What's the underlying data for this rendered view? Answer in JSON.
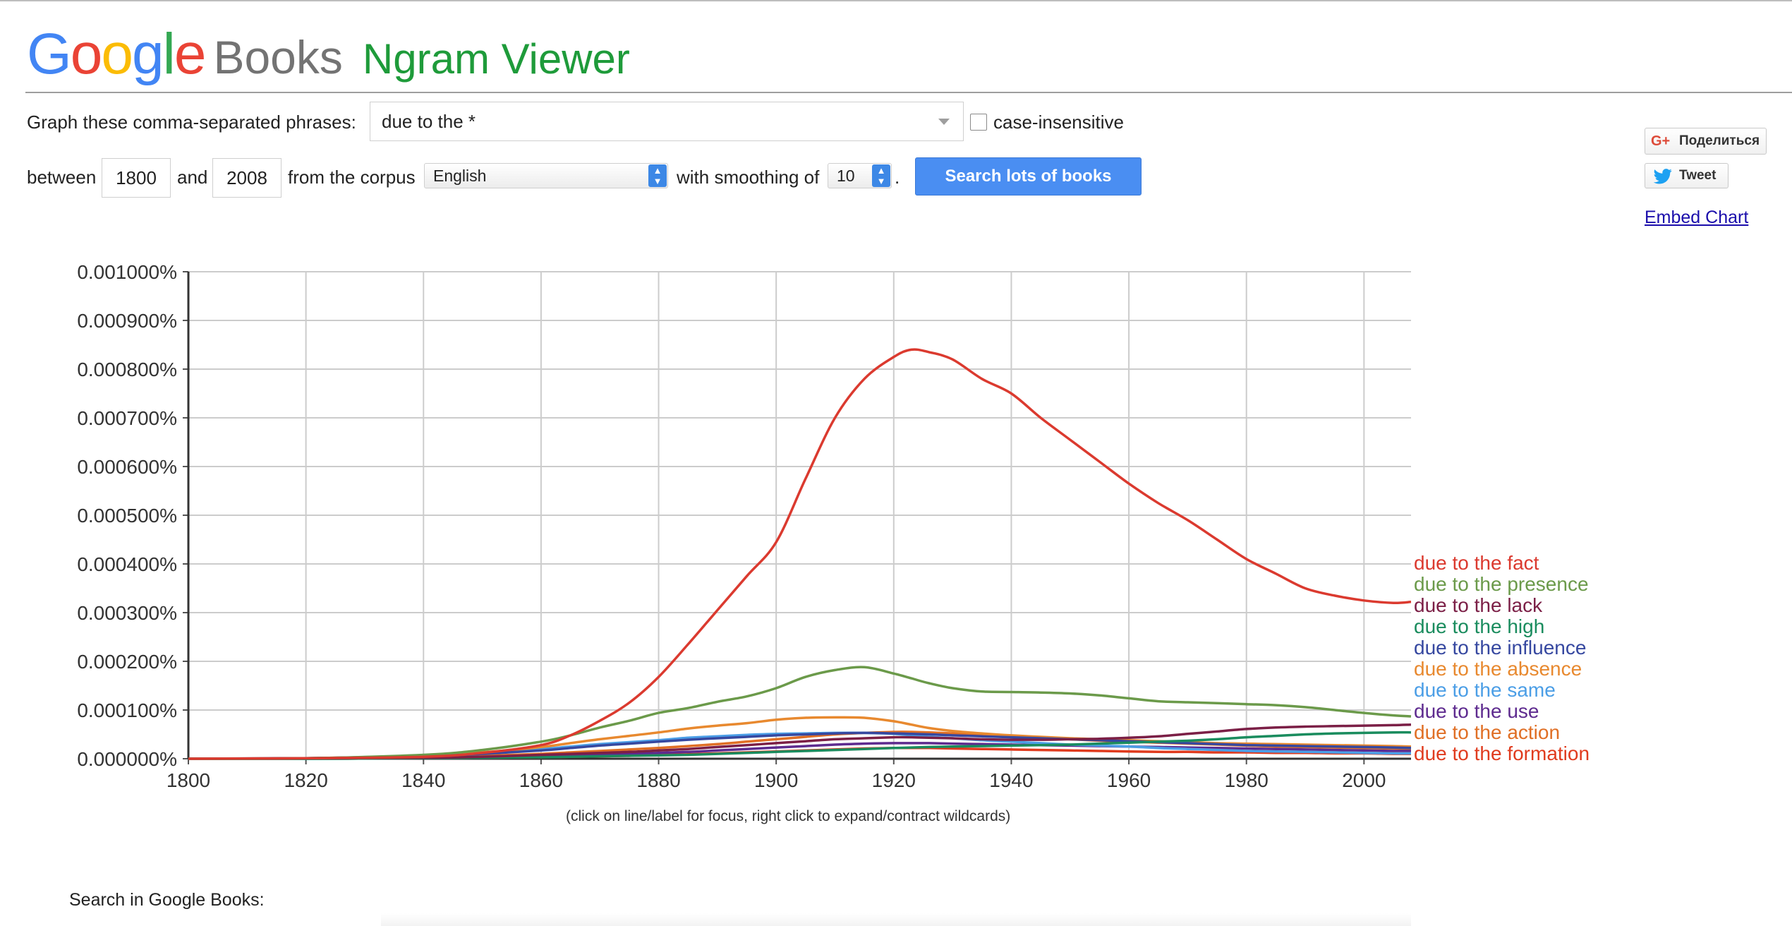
{
  "brand": {
    "google_letters": [
      {
        "ch": "G",
        "color": "#4285F4"
      },
      {
        "ch": "o",
        "color": "#EA4335"
      },
      {
        "ch": "o",
        "color": "#FBBC05"
      },
      {
        "ch": "g",
        "color": "#4285F4"
      },
      {
        "ch": "l",
        "color": "#34A853"
      },
      {
        "ch": "e",
        "color": "#EA4335"
      }
    ],
    "books": "Books",
    "product": "Ngram Viewer"
  },
  "form": {
    "phrases_label": "Graph these comma-separated phrases:",
    "phrases_value": "due to the *",
    "case_insensitive_label": "case-insensitive",
    "between_label": "between",
    "start_year": "1800",
    "and_label": "and",
    "end_year": "2008",
    "corpus_label": "from the corpus",
    "corpus_value": "English",
    "smoothing_label": "with smoothing of",
    "smoothing_value": "10",
    "period": ".",
    "search_button": "Search lots of books"
  },
  "social": {
    "share_label": "Поделиться",
    "share_icon": "G+",
    "tweet_label": "Tweet",
    "embed_label": "Embed Chart"
  },
  "hint": "(click on line/label for focus, right click to expand/contract wildcards)",
  "search_in": "Search in Google Books:",
  "chart_data": {
    "type": "line",
    "xlim": [
      1800,
      2008
    ],
    "ylim": [
      0,
      0.001
    ],
    "x_ticks": [
      1800,
      1820,
      1840,
      1860,
      1880,
      1900,
      1920,
      1940,
      1960,
      1980,
      2000
    ],
    "y_ticks": [
      "0.000000%",
      "0.000100%",
      "0.000200%",
      "0.000300%",
      "0.000400%",
      "0.000500%",
      "0.000600%",
      "0.000700%",
      "0.000800%",
      "0.000900%",
      "0.001000%"
    ],
    "grid": true,
    "legend_placement": "right-end",
    "x": [
      1800,
      1820,
      1840,
      1850,
      1860,
      1865,
      1870,
      1875,
      1880,
      1885,
      1890,
      1895,
      1900,
      1905,
      1910,
      1915,
      1920,
      1923,
      1926,
      1930,
      1935,
      1940,
      1945,
      1950,
      1955,
      1960,
      1965,
      1970,
      1975,
      1980,
      1985,
      1990,
      1995,
      2000,
      2005,
      2008
    ],
    "series": [
      {
        "name": "due to the fact",
        "color": "#db3a2f",
        "values": [
          0,
          1e-06,
          4e-06,
          1.2e-05,
          2.8e-05,
          4.8e-05,
          7.8e-05,
          0.000115,
          0.000168,
          0.000235,
          0.000305,
          0.000375,
          0.000445,
          0.000575,
          0.0007,
          0.00078,
          0.000825,
          0.00084,
          0.000835,
          0.00082,
          0.00078,
          0.00075,
          0.0007,
          0.000655,
          0.00061,
          0.000565,
          0.000525,
          0.00049,
          0.00045,
          0.00041,
          0.00038,
          0.00035,
          0.000335,
          0.000325,
          0.00032,
          0.000322
        ]
      },
      {
        "name": "due to the presence",
        "color": "#6b9a4a",
        "values": [
          0,
          1e-06,
          8e-06,
          1.8e-05,
          3.5e-05,
          4.8e-05,
          6.4e-05,
          7.8e-05,
          9.4e-05,
          0.000104,
          0.000117,
          0.000128,
          0.000145,
          0.000168,
          0.000182,
          0.000188,
          0.000175,
          0.000165,
          0.000155,
          0.000145,
          0.000138,
          0.000137,
          0.000136,
          0.000134,
          0.00013,
          0.000124,
          0.000118,
          0.000116,
          0.000114,
          0.000112,
          0.00011,
          0.000106,
          0.0001,
          9.4e-05,
          8.9e-05,
          8.7e-05
        ]
      },
      {
        "name": "due to the lack",
        "color": "#7b1f46",
        "values": [
          0,
          1e-06,
          2e-06,
          4e-06,
          8e-06,
          1e-05,
          1.2e-05,
          1.4e-05,
          1.7e-05,
          2e-05,
          2.4e-05,
          2.8e-05,
          3.2e-05,
          3.6e-05,
          4e-05,
          4.2e-05,
          4.4e-05,
          4.4e-05,
          4.3e-05,
          4.2e-05,
          4e-05,
          3.9e-05,
          3.9e-05,
          4e-05,
          4.1e-05,
          4.3e-05,
          4.6e-05,
          5.1e-05,
          5.6e-05,
          6.1e-05,
          6.4e-05,
          6.6e-05,
          6.7e-05,
          6.8e-05,
          6.9e-05,
          7e-05
        ]
      },
      {
        "name": "due to the high",
        "color": "#1a8c5e",
        "values": [
          0,
          0,
          1e-06,
          2e-06,
          3e-06,
          4e-06,
          5e-06,
          6e-06,
          7e-06,
          8e-06,
          1e-05,
          1.2e-05,
          1.4e-05,
          1.6e-05,
          1.8e-05,
          2e-05,
          2.2e-05,
          2.3e-05,
          2.4e-05,
          2.5e-05,
          2.6e-05,
          2.7e-05,
          2.8e-05,
          2.9e-05,
          3.1e-05,
          3.3e-05,
          3.5e-05,
          3.7e-05,
          4e-05,
          4.4e-05,
          4.7e-05,
          5e-05,
          5.2e-05,
          5.3e-05,
          5.4e-05,
          5.4e-05
        ]
      },
      {
        "name": "due to the influence",
        "color": "#3648a0",
        "values": [
          0,
          1e-06,
          5e-06,
          1e-05,
          1.7e-05,
          2.2e-05,
          2.7e-05,
          3.1e-05,
          3.5e-05,
          3.9e-05,
          4.2e-05,
          4.5e-05,
          4.8e-05,
          5e-05,
          5.2e-05,
          5.3e-05,
          5.2e-05,
          5.1e-05,
          5e-05,
          4.8e-05,
          4.6e-05,
          4.4e-05,
          4.2e-05,
          4e-05,
          3.8e-05,
          3.6e-05,
          3.4e-05,
          3.2e-05,
          3e-05,
          2.8e-05,
          2.7e-05,
          2.6e-05,
          2.5e-05,
          2.4e-05,
          2.3e-05,
          2.2e-05
        ]
      },
      {
        "name": "due to the absence",
        "color": "#e8892f",
        "values": [
          0,
          1e-06,
          6e-06,
          1.3e-05,
          2.4e-05,
          3.2e-05,
          4e-05,
          4.7e-05,
          5.4e-05,
          6.2e-05,
          6.8e-05,
          7.3e-05,
          8e-05,
          8.4e-05,
          8.5e-05,
          8.4e-05,
          7.7e-05,
          7e-05,
          6.3e-05,
          5.7e-05,
          5.2e-05,
          4.8e-05,
          4.5e-05,
          4.2e-05,
          4e-05,
          3.8e-05,
          3.6e-05,
          3.4e-05,
          3.2e-05,
          3.1e-05,
          3e-05,
          2.9e-05,
          2.8e-05,
          2.7e-05,
          2.6e-05,
          2.5e-05
        ]
      },
      {
        "name": "due to the same",
        "color": "#4b9ee6",
        "values": [
          0,
          1e-06,
          7e-06,
          1.3e-05,
          2e-05,
          2.5e-05,
          3e-05,
          3.4e-05,
          3.8e-05,
          4.3e-05,
          4.6e-05,
          4.9e-05,
          5.1e-05,
          5.2e-05,
          5.3e-05,
          5.3e-05,
          5.1e-05,
          4.8e-05,
          4.5e-05,
          4.2e-05,
          3.8e-05,
          3.5e-05,
          3.2e-05,
          2.9e-05,
          2.7e-05,
          2.5e-05,
          2.2e-05,
          2e-05,
          1.8e-05,
          1.6e-05,
          1.5e-05,
          1.4e-05,
          1.3e-05,
          1.2e-05,
          1.1e-05,
          1.1e-05
        ]
      },
      {
        "name": "due to the use",
        "color": "#5e2b8f",
        "values": [
          0,
          0,
          1e-06,
          2e-06,
          4e-06,
          6e-06,
          8e-06,
          1e-05,
          1.2e-05,
          1.4e-05,
          1.7e-05,
          2e-05,
          2.3e-05,
          2.6e-05,
          2.9e-05,
          3.1e-05,
          3.2e-05,
          3.2e-05,
          3.2e-05,
          3.1e-05,
          3e-05,
          2.9e-05,
          2.8e-05,
          2.7e-05,
          2.6e-05,
          2.5e-05,
          2.4e-05,
          2.3e-05,
          2.2e-05,
          2.1e-05,
          2e-05,
          1.9e-05,
          1.8e-05,
          1.7e-05,
          1.6e-05,
          1.6e-05
        ]
      },
      {
        "name": "due to the action",
        "color": "#e06f25",
        "values": [
          0,
          1e-06,
          3e-06,
          6e-06,
          1e-05,
          1.3e-05,
          1.6e-05,
          1.9e-05,
          2.2e-05,
          2.6e-05,
          3e-05,
          3.5e-05,
          4e-05,
          4.5e-05,
          5e-05,
          5.3e-05,
          5.5e-05,
          5.5e-05,
          5.4e-05,
          5.2e-05,
          4.9e-05,
          4.6e-05,
          4.3e-05,
          4e-05,
          3.7e-05,
          3.5e-05,
          3.3e-05,
          3.1e-05,
          2.9e-05,
          2.7e-05,
          2.5e-05,
          2.4e-05,
          2.3e-05,
          2.2e-05,
          2.1e-05,
          2e-05
        ]
      },
      {
        "name": "due to the formation",
        "color": "#e03b1e",
        "values": [
          0,
          0,
          1e-06,
          2e-06,
          3e-06,
          4e-06,
          5e-06,
          6e-06,
          8e-06,
          9e-06,
          1.1e-05,
          1.3e-05,
          1.5e-05,
          1.7e-05,
          1.9e-05,
          2.1e-05,
          2.2e-05,
          2.2e-05,
          2.2e-05,
          2.1e-05,
          2e-05,
          1.9e-05,
          1.8e-05,
          1.7e-05,
          1.6e-05,
          1.5e-05,
          1.4e-05,
          1.4e-05,
          1.3e-05,
          1.3e-05,
          1.2e-05,
          1.2e-05,
          1.1e-05,
          1.1e-05,
          1e-05,
          1e-05
        ]
      }
    ]
  }
}
